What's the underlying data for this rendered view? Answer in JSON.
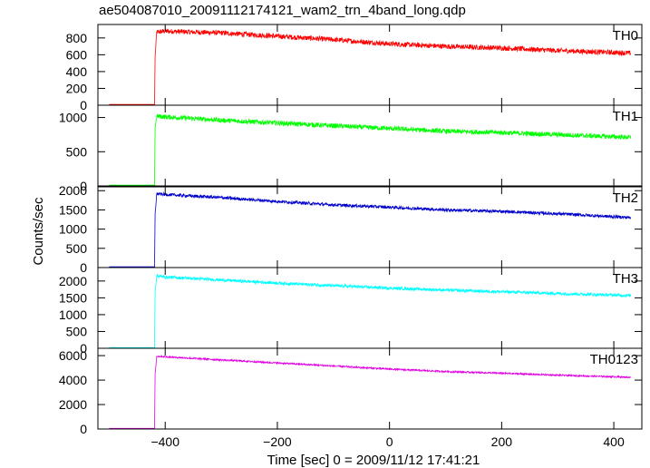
{
  "chart_data": {
    "type": "line",
    "title": "ae504087010_20091112174121_wam2_trn_4band_long.qdp",
    "xlabel": "Time [sec] 0 = 2009/11/12 17:41:21",
    "ylabel": "Counts/sec",
    "xlim": [
      -520,
      450
    ],
    "x_ticks": [
      -400,
      -200,
      0,
      200,
      400
    ],
    "x_tick_labels": [
      "−400",
      "−200",
      "0",
      "200",
      "400"
    ],
    "panels": [
      {
        "name": "TH0",
        "color": "#ff0000",
        "ylim": [
          0,
          960
        ],
        "y_ticks": [
          0,
          200,
          400,
          600,
          800
        ],
        "y_tick_labels": [
          "0",
          "200",
          "400",
          "600",
          "800"
        ],
        "points": [
          [
            -500,
            10
          ],
          [
            -419,
            10
          ],
          [
            -418,
            580
          ],
          [
            -415,
            870
          ],
          [
            -400,
            880
          ],
          [
            -300,
            860
          ],
          [
            -200,
            820
          ],
          [
            -100,
            780
          ],
          [
            0,
            730
          ],
          [
            100,
            700
          ],
          [
            200,
            680
          ],
          [
            300,
            650
          ],
          [
            430,
            620
          ]
        ],
        "noise": 60
      },
      {
        "name": "TH1",
        "color": "#00ff00",
        "ylim": [
          0,
          1180
        ],
        "y_ticks": [
          0,
          500,
          1000
        ],
        "y_tick_labels": [
          "0",
          "500",
          "1000"
        ],
        "points": [
          [
            -500,
            10
          ],
          [
            -419,
            10
          ],
          [
            -418,
            850
          ],
          [
            -415,
            1020
          ],
          [
            -400,
            1010
          ],
          [
            -300,
            960
          ],
          [
            -200,
            920
          ],
          [
            -100,
            880
          ],
          [
            0,
            840
          ],
          [
            100,
            800
          ],
          [
            200,
            780
          ],
          [
            300,
            750
          ],
          [
            430,
            710
          ]
        ],
        "noise": 70
      },
      {
        "name": "TH2",
        "color": "#0000cc",
        "ylim": [
          0,
          2100
        ],
        "y_ticks": [
          0,
          500,
          1000,
          1500,
          2000
        ],
        "y_tick_labels": [
          "0",
          "500",
          "1000",
          "1500",
          "2000"
        ],
        "points": [
          [
            -500,
            20
          ],
          [
            -419,
            20
          ],
          [
            -418,
            1400
          ],
          [
            -415,
            1920
          ],
          [
            -400,
            1900
          ],
          [
            -300,
            1820
          ],
          [
            -200,
            1720
          ],
          [
            -100,
            1630
          ],
          [
            0,
            1570
          ],
          [
            100,
            1500
          ],
          [
            200,
            1460
          ],
          [
            300,
            1400
          ],
          [
            430,
            1300
          ]
        ],
        "noise": 80
      },
      {
        "name": "TH3",
        "color": "#00ffff",
        "ylim": [
          0,
          2400
        ],
        "y_ticks": [
          0,
          500,
          1000,
          1500,
          2000
        ],
        "y_tick_labels": [
          "0",
          "500",
          "1000",
          "1500",
          "2000"
        ],
        "points": [
          [
            -500,
            20
          ],
          [
            -419,
            20
          ],
          [
            -418,
            1700
          ],
          [
            -415,
            2150
          ],
          [
            -400,
            2120
          ],
          [
            -300,
            2030
          ],
          [
            -200,
            1940
          ],
          [
            -100,
            1860
          ],
          [
            0,
            1790
          ],
          [
            100,
            1730
          ],
          [
            200,
            1680
          ],
          [
            300,
            1630
          ],
          [
            430,
            1570
          ]
        ],
        "noise": 90
      },
      {
        "name": "TH0123",
        "color": "#e000e0",
        "ylim": [
          0,
          6600
        ],
        "y_ticks": [
          0,
          2000,
          4000,
          6000
        ],
        "y_tick_labels": [
          "0",
          "2000",
          "4000",
          "6000"
        ],
        "points": [
          [
            -500,
            50
          ],
          [
            -419,
            50
          ],
          [
            -418,
            4500
          ],
          [
            -415,
            5950
          ],
          [
            -400,
            5900
          ],
          [
            -300,
            5650
          ],
          [
            -200,
            5400
          ],
          [
            -100,
            5150
          ],
          [
            0,
            4900
          ],
          [
            100,
            4700
          ],
          [
            200,
            4560
          ],
          [
            300,
            4400
          ],
          [
            430,
            4230
          ]
        ],
        "noise": 130
      }
    ],
    "grid": false,
    "legend": "none"
  }
}
